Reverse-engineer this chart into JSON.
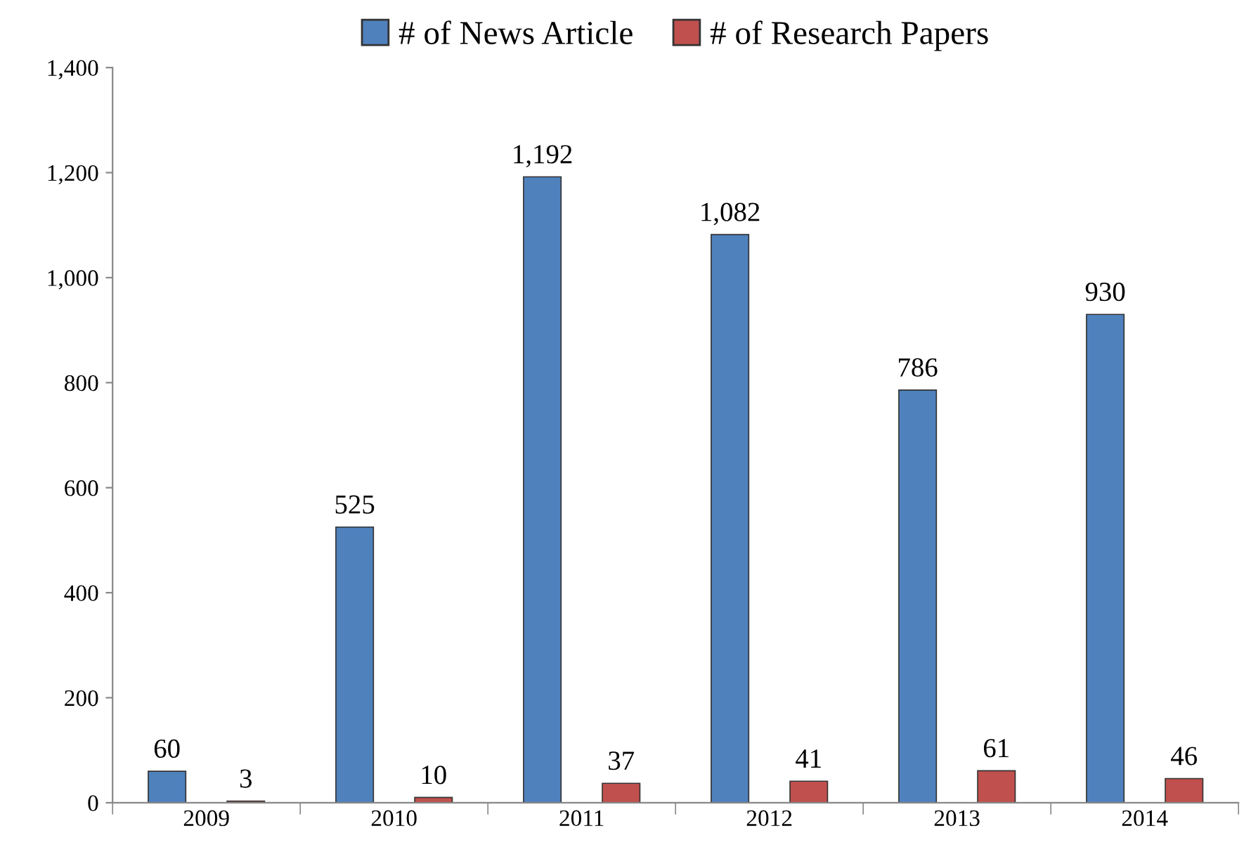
{
  "chart_data": {
    "type": "bar",
    "categories": [
      "2009",
      "2010",
      "2011",
      "2012",
      "2013",
      "2014"
    ],
    "series": [
      {
        "name": "# of News Article",
        "color": "#4f81bd",
        "values": [
          60,
          525,
          1192,
          1082,
          786,
          930
        ],
        "value_labels": [
          "60",
          "525",
          "1,192",
          "1,082",
          "786",
          "930"
        ]
      },
      {
        "name": "# of Research Papers",
        "color": "#c0504d",
        "values": [
          3,
          10,
          37,
          41,
          61,
          46
        ],
        "value_labels": [
          "3",
          "10",
          "37",
          "41",
          "61",
          "46"
        ]
      }
    ],
    "ylim": [
      0,
      1400
    ],
    "yticks": [
      0,
      200,
      400,
      600,
      800,
      {
        "value": 1000,
        "label": "1,000"
      },
      {
        "value": 1200,
        "label": "1,200"
      },
      {
        "value": 1400,
        "label": "1,400"
      }
    ],
    "legend": "top",
    "grid": false
  }
}
